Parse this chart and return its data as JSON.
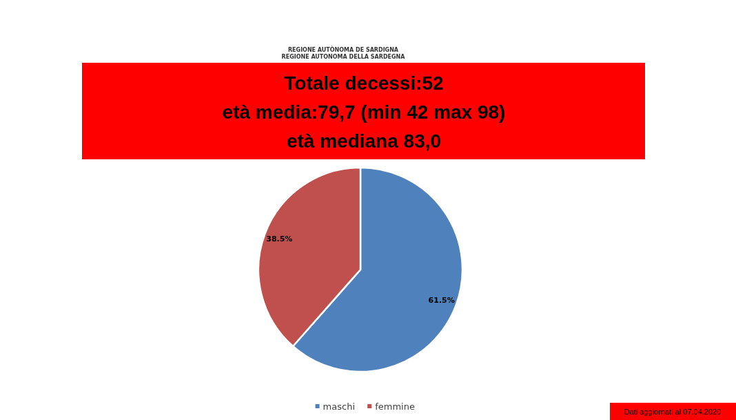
{
  "chart_data": {
    "type": "pie",
    "title": "Totale decessi:52\netà media:79,7 (min 42 max 98)\netà mediana 83,0",
    "categories": [
      "maschi",
      "femmine"
    ],
    "values": [
      61.5,
      38.5
    ],
    "colors": [
      "#4f81bd",
      "#c0504d"
    ],
    "value_labels": [
      "61.5%",
      "38.5%"
    ],
    "legend": "bottom",
    "annotations": [
      "REGIONE AUTÒNOMA DE SARDIGNA",
      "REGIONE AUTONOMA DELLA SARDEGNA",
      "Dati aggiornati al 07.04.2020"
    ]
  }
}
